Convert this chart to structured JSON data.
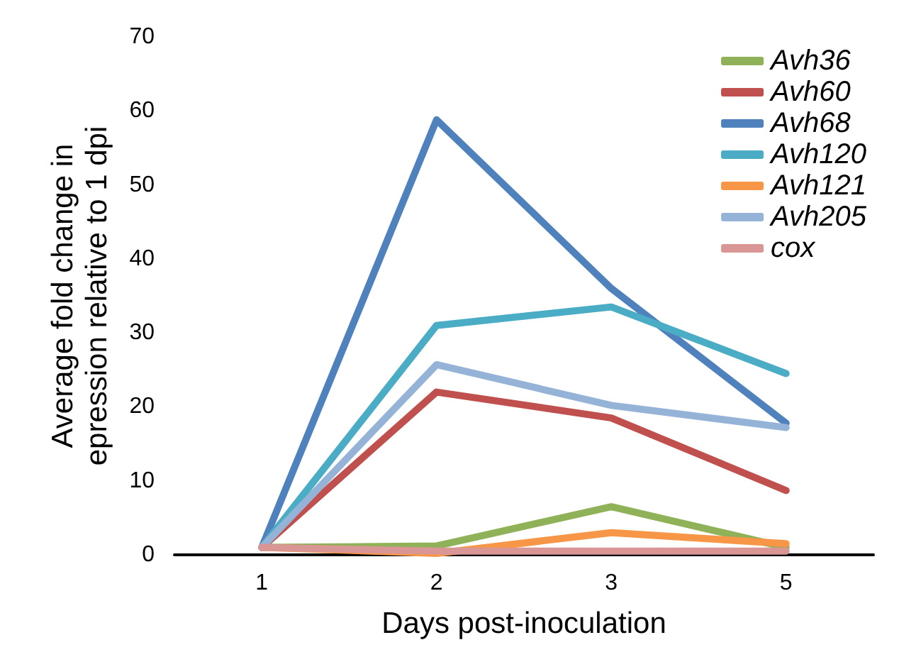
{
  "chart_data": {
    "type": "line",
    "xlabel": "Days post-inoculation",
    "ylabel": "Average fold change in\nepression relative to 1 dpi",
    "categories": [
      "1",
      "2",
      "3",
      "5"
    ],
    "ylim": [
      0,
      70
    ],
    "yticks": [
      0,
      10,
      20,
      30,
      40,
      50,
      60,
      70
    ],
    "grid": false,
    "legend": "top right",
    "marker": "none",
    "line_style": "solid",
    "series": [
      {
        "name": "Avh36",
        "color": "#8fb157",
        "values": [
          1,
          1.2,
          6.5,
          1
        ]
      },
      {
        "name": "Avh60",
        "color": "#c0504d",
        "values": [
          1,
          22,
          18.5,
          8.7
        ]
      },
      {
        "name": "Avh68",
        "color": "#4f81bd",
        "values": [
          1,
          58.8,
          36,
          17.8
        ]
      },
      {
        "name": "Avh120",
        "color": "#4bacc6",
        "values": [
          1,
          31,
          33.5,
          24.5
        ]
      },
      {
        "name": "Avh121",
        "color": "#f79646",
        "values": [
          1,
          0.2,
          3,
          1.5
        ]
      },
      {
        "name": "Avh205",
        "color": "#95b3d7",
        "values": [
          1,
          25.7,
          20.2,
          17.2
        ]
      },
      {
        "name": "cox",
        "color": "#d99694",
        "values": [
          1,
          0.5,
          0.5,
          0.5
        ]
      }
    ]
  }
}
